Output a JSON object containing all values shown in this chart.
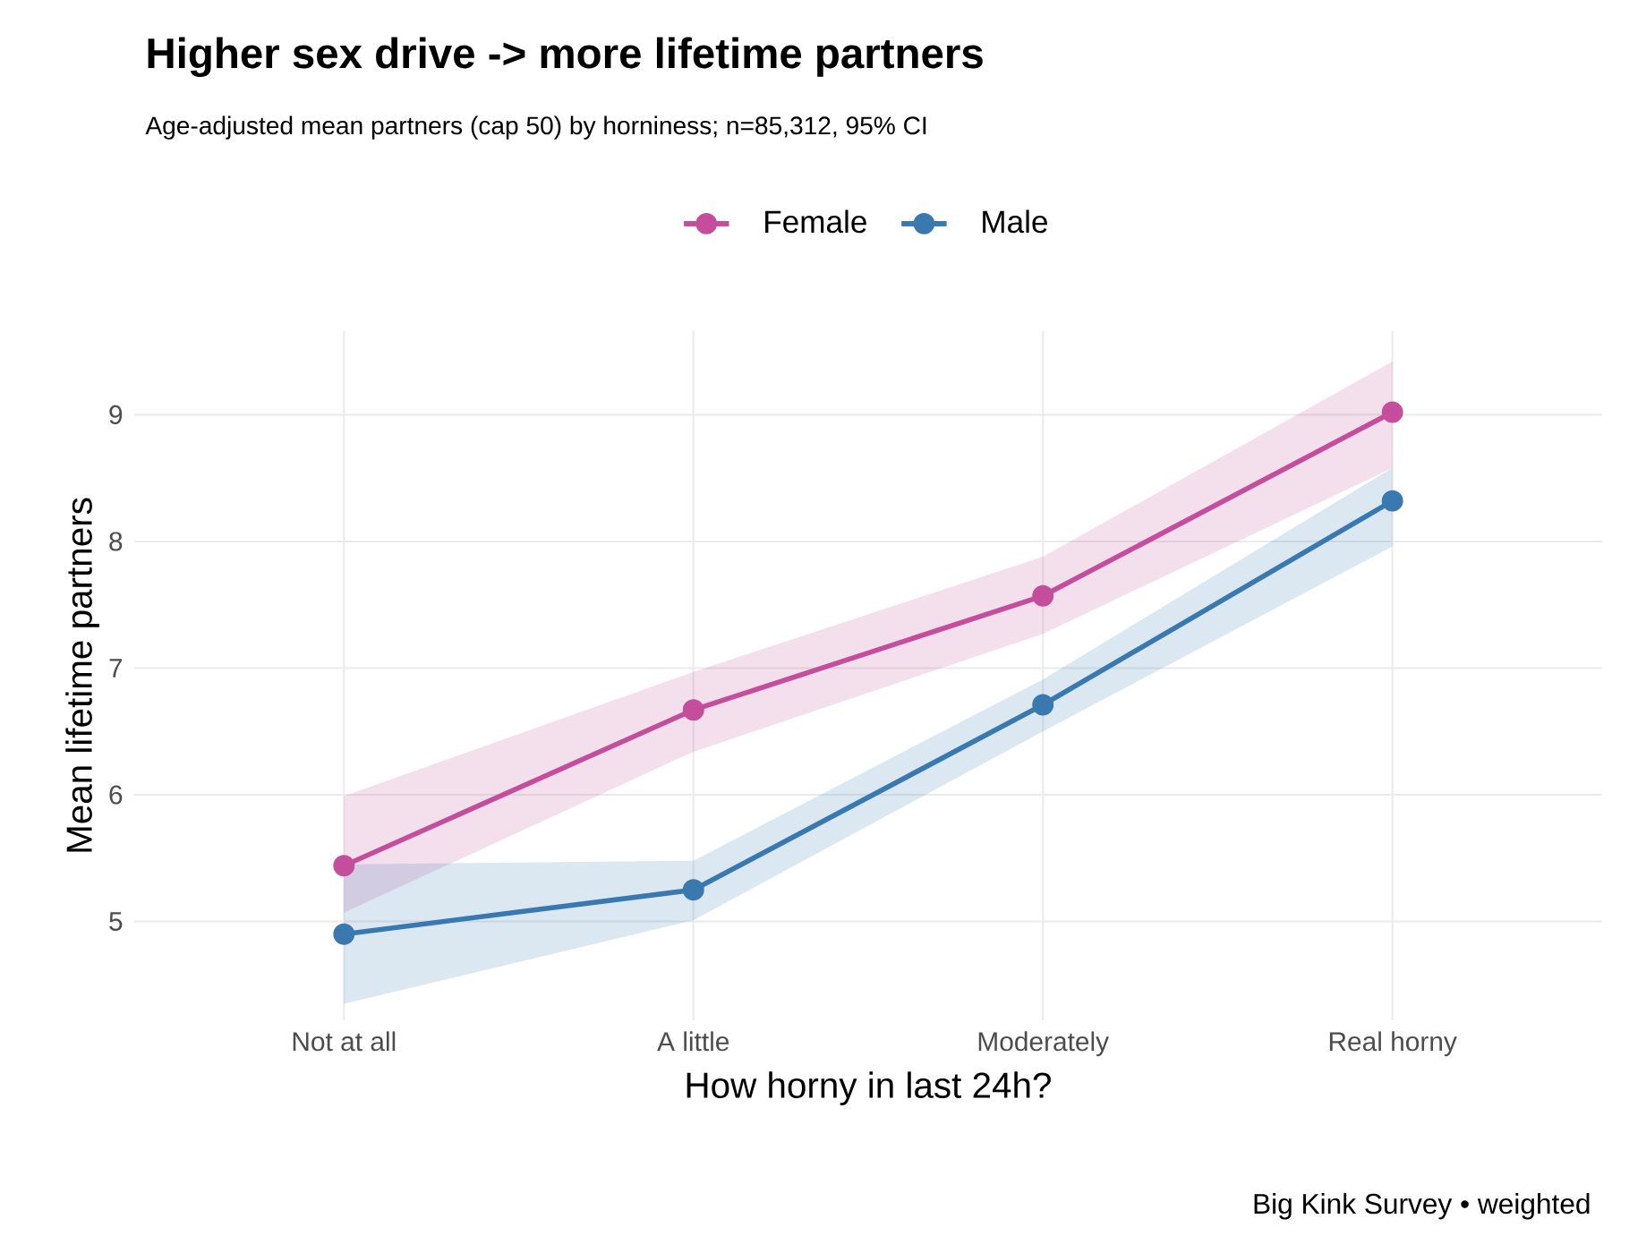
{
  "chart_data": {
    "type": "line",
    "title": "Higher sex drive -> more lifetime partners",
    "subtitle": "Age-adjusted mean partners (cap 50) by horniness; n=85,312, 95% CI",
    "xlabel": "How horny in last 24h?",
    "ylabel": "Mean lifetime partners",
    "categories": [
      "Not at all",
      "A little",
      "Moderately",
      "Real horny"
    ],
    "series": [
      {
        "name": "Female",
        "color": "#c44e9c",
        "values": [
          5.44,
          6.67,
          7.57,
          9.02
        ],
        "lower": [
          5.07,
          6.34,
          7.27,
          8.58
        ],
        "upper": [
          5.99,
          6.97,
          7.88,
          9.42
        ]
      },
      {
        "name": "Male",
        "color": "#3a78b0",
        "values": [
          4.9,
          5.25,
          6.71,
          8.32
        ],
        "lower": [
          4.35,
          5.01,
          6.5,
          7.96
        ],
        "upper": [
          5.45,
          5.48,
          6.91,
          8.58
        ]
      }
    ],
    "ylim": [
      4.22,
      9.66
    ],
    "yticks": [
      5,
      6,
      7,
      8,
      9
    ],
    "grid": true,
    "legend": "top",
    "marker": "circle",
    "line_style": "solid",
    "annotations": [
      "Big Kink Survey • weighted"
    ]
  }
}
